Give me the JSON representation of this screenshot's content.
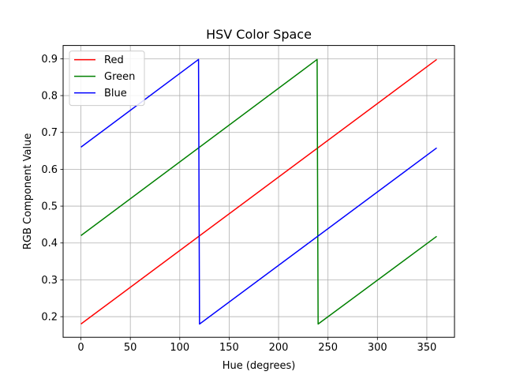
{
  "chart_data": {
    "type": "line",
    "title": "HSV Color Space",
    "xlabel": "Hue (degrees)",
    "ylabel": "RGB Component Value",
    "xlim": [
      -18,
      378
    ],
    "ylim": [
      0.144,
      0.936
    ],
    "xticks": [
      0,
      50,
      100,
      150,
      200,
      250,
      300,
      350
    ],
    "yticks": [
      0.2,
      0.3,
      0.4,
      0.5,
      0.6,
      0.7,
      0.8,
      0.9
    ],
    "grid": true,
    "legend_position": "top-left",
    "series": [
      {
        "name": "Red",
        "color": "#ff0000",
        "points": [
          [
            0,
            0.18
          ],
          [
            360,
            0.898
          ]
        ]
      },
      {
        "name": "Green",
        "color": "#008000",
        "points": [
          [
            0,
            0.42
          ],
          [
            239,
            0.898
          ],
          [
            240,
            0.18
          ],
          [
            360,
            0.418
          ]
        ]
      },
      {
        "name": "Blue",
        "color": "#0000ff",
        "points": [
          [
            0,
            0.66
          ],
          [
            119,
            0.898
          ],
          [
            120,
            0.18
          ],
          [
            360,
            0.658
          ]
        ]
      }
    ]
  }
}
